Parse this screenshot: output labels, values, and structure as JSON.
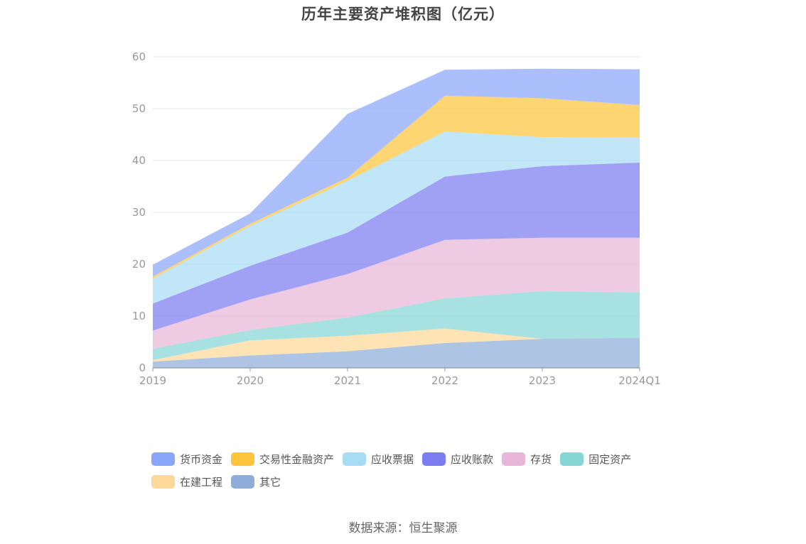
{
  "chart_data": {
    "type": "area",
    "stacked": true,
    "title": "历年主要资产堆积图（亿元）",
    "categories": [
      "2019",
      "2020",
      "2021",
      "2022",
      "2023",
      "2024Q1"
    ],
    "ylim": [
      0,
      60
    ],
    "yticks": [
      0,
      10,
      20,
      30,
      40,
      50,
      60
    ],
    "grid": true,
    "legend_position": "bottom",
    "series": [
      {
        "name": "其它",
        "color": "#8fadd9",
        "values": [
          1.2,
          2.4,
          3.2,
          4.8,
          5.6,
          5.8
        ]
      },
      {
        "name": "在建工程",
        "color": "#fdd898",
        "values": [
          0.3,
          2.9,
          3.0,
          2.8,
          0.0,
          0.0
        ]
      },
      {
        "name": "固定资产",
        "color": "#86d6d6",
        "values": [
          2.2,
          2.0,
          3.5,
          5.8,
          9.2,
          8.8
        ]
      },
      {
        "name": "存货",
        "color": "#e8b6d8",
        "values": [
          3.5,
          5.9,
          8.4,
          11.3,
          10.3,
          10.5
        ]
      },
      {
        "name": "应收账款",
        "color": "#7b7df0",
        "values": [
          5.2,
          6.5,
          8.0,
          12.2,
          13.8,
          14.5
        ]
      },
      {
        "name": "应收票据",
        "color": "#a8dcf5",
        "values": [
          4.8,
          7.7,
          10.0,
          8.7,
          5.6,
          4.8
        ]
      },
      {
        "name": "交易性金融资产",
        "color": "#fdc53d",
        "values": [
          0.4,
          0.4,
          0.6,
          6.9,
          7.5,
          6.3
        ]
      },
      {
        "name": "货币资金",
        "color": "#8aa6fb",
        "values": [
          2.3,
          2.0,
          12.3,
          5.0,
          5.7,
          6.9
        ]
      }
    ]
  },
  "legend": {
    "row1": [
      {
        "name": "货币资金",
        "color": "#8aa6fb"
      },
      {
        "name": "交易性金融资产",
        "color": "#fdc53d"
      },
      {
        "name": "应收票据",
        "color": "#a8dcf5"
      },
      {
        "name": "应收账款",
        "color": "#7b7df0"
      },
      {
        "name": "存货",
        "color": "#e8b6d8"
      },
      {
        "name": "固定资产",
        "color": "#86d6d6"
      }
    ],
    "row2": [
      {
        "name": "在建工程",
        "color": "#fdd898"
      },
      {
        "name": "其它",
        "color": "#8fadd9"
      }
    ]
  },
  "source": "数据来源：恒生聚源"
}
